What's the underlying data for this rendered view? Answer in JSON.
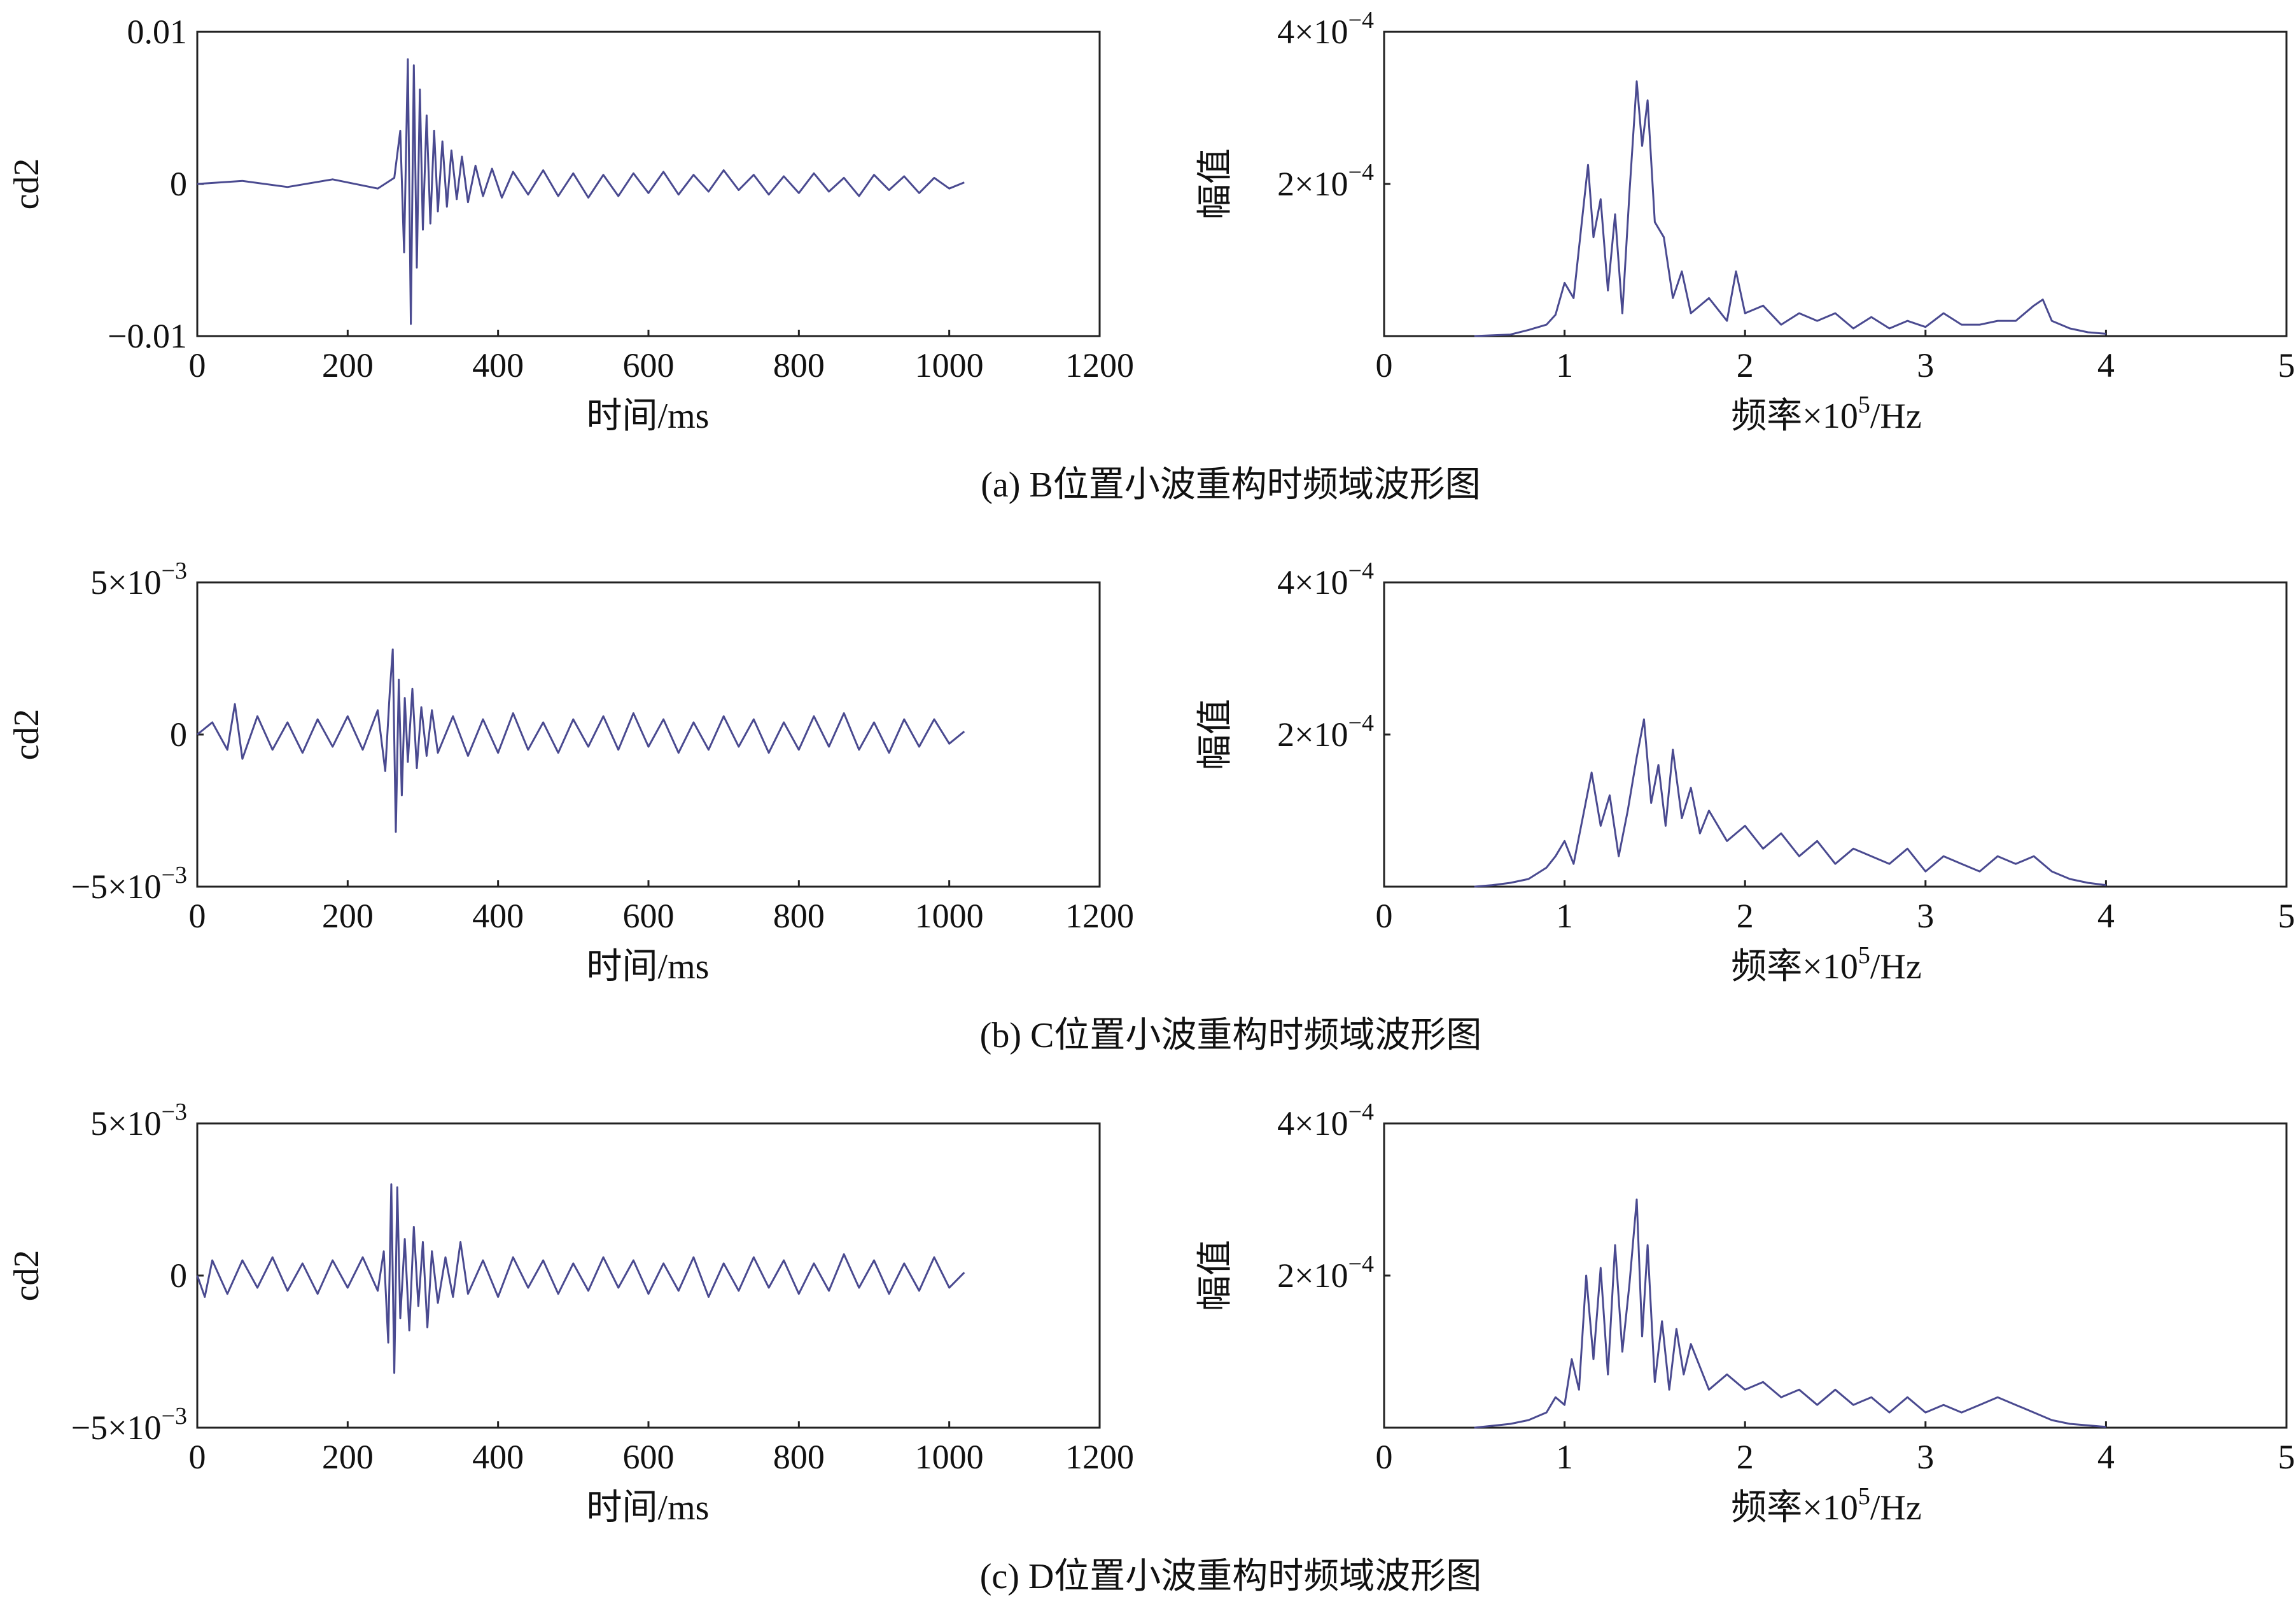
{
  "colors": {
    "trace": "#4a4a90",
    "axis": "#222222",
    "background": "#ffffff"
  },
  "chart_data": [
    {
      "panel": "a",
      "side": "time",
      "type": "line",
      "title": "",
      "xlabel": "时间/ms",
      "ylabel": "cd2",
      "xlim": [
        0,
        1200
      ],
      "ylim": [
        -0.01,
        0.01
      ],
      "xticks": [
        0,
        200,
        400,
        600,
        800,
        1000,
        1200
      ],
      "xtick_labels": [
        "0",
        "200",
        "400",
        "600",
        "800",
        "1000",
        "1200"
      ],
      "yticks": [
        -0.01,
        0,
        0.01
      ],
      "ytick_labels": [
        "−0.01",
        "0",
        "0.01"
      ],
      "series": [
        {
          "name": "cd2",
          "x": [
            0,
            60,
            120,
            180,
            240,
            262,
            270,
            275,
            280,
            284,
            288,
            292,
            296,
            300,
            305,
            310,
            315,
            320,
            326,
            332,
            338,
            345,
            352,
            360,
            370,
            380,
            392,
            405,
            420,
            440,
            460,
            480,
            500,
            520,
            540,
            560,
            580,
            600,
            620,
            640,
            660,
            680,
            700,
            720,
            740,
            760,
            780,
            800,
            820,
            840,
            860,
            880,
            900,
            920,
            940,
            960,
            980,
            1000,
            1020
          ],
          "y": [
            0,
            0.0002,
            -0.0002,
            0.0003,
            -0.0003,
            0.0004,
            0.0035,
            -0.0045,
            0.0082,
            -0.0092,
            0.0078,
            -0.0055,
            0.0062,
            -0.003,
            0.0045,
            -0.0026,
            0.0035,
            -0.0018,
            0.0028,
            -0.0015,
            0.0022,
            -0.001,
            0.0018,
            -0.0012,
            0.0012,
            -0.0008,
            0.001,
            -0.0009,
            0.0008,
            -0.0007,
            0.0009,
            -0.0008,
            0.0007,
            -0.0009,
            0.0006,
            -0.0008,
            0.0007,
            -0.0006,
            0.0008,
            -0.0007,
            0.0006,
            -0.0005,
            0.0009,
            -0.0004,
            0.0006,
            -0.0007,
            0.0005,
            -0.0006,
            0.0007,
            -0.0005,
            0.0004,
            -0.0008,
            0.0006,
            -0.0004,
            0.0005,
            -0.0006,
            0.0004,
            -0.0003,
            0.0001
          ]
        }
      ]
    },
    {
      "panel": "a",
      "side": "freq",
      "type": "line",
      "title": "",
      "xlabel": "频率×10",
      "xlabel_sup": "5",
      "xlabel_suffix": "/Hz",
      "ylabel": "幅值",
      "xlim": [
        0,
        5
      ],
      "ylim": [
        0,
        0.0004
      ],
      "xticks": [
        0,
        1,
        2,
        3,
        4,
        5
      ],
      "xtick_labels": [
        "0",
        "1",
        "2",
        "3",
        "4",
        "5"
      ],
      "yticks": [
        0.0002,
        0.0004
      ],
      "ytick_labels": [
        {
          "base": "2×10",
          "exp": "−4"
        },
        {
          "base": "4×10",
          "exp": "−4"
        }
      ],
      "series": [
        {
          "name": "幅值",
          "x": [
            0.5,
            0.7,
            0.8,
            0.9,
            0.95,
            1.0,
            1.05,
            1.1,
            1.13,
            1.16,
            1.2,
            1.24,
            1.28,
            1.32,
            1.36,
            1.4,
            1.43,
            1.46,
            1.5,
            1.55,
            1.6,
            1.65,
            1.7,
            1.8,
            1.9,
            1.95,
            2.0,
            2.1,
            2.2,
            2.3,
            2.4,
            2.5,
            2.6,
            2.7,
            2.8,
            2.9,
            3.0,
            3.1,
            3.2,
            3.3,
            3.4,
            3.5,
            3.6,
            3.65,
            3.7,
            3.8,
            3.9,
            4.0
          ],
          "y": [
            0,
            2e-06,
            8e-06,
            1.5e-05,
            2.8e-05,
            7e-05,
            5e-05,
            0.00016,
            0.000225,
            0.00013,
            0.00018,
            6e-05,
            0.00016,
            3e-05,
            0.00019,
            0.000335,
            0.00025,
            0.00031,
            0.00015,
            0.00013,
            5e-05,
            8.5e-05,
            3e-05,
            5e-05,
            2e-05,
            8.5e-05,
            3e-05,
            4e-05,
            1.5e-05,
            3e-05,
            2e-05,
            3e-05,
            1e-05,
            2.5e-05,
            1e-05,
            2e-05,
            1.2e-05,
            3e-05,
            1.5e-05,
            1.5e-05,
            2e-05,
            2e-05,
            4e-05,
            4.8e-05,
            2e-05,
            1e-05,
            5e-06,
            3e-06
          ]
        }
      ]
    },
    {
      "panel": "b",
      "side": "time",
      "type": "line",
      "title": "",
      "xlabel": "时间/ms",
      "ylabel": "cd2",
      "xlim": [
        0,
        1200
      ],
      "ylim": [
        -0.005,
        0.005
      ],
      "xticks": [
        0,
        200,
        400,
        600,
        800,
        1000,
        1200
      ],
      "xtick_labels": [
        "0",
        "200",
        "400",
        "600",
        "800",
        "1000",
        "1200"
      ],
      "yticks": [
        -0.005,
        0,
        0.005
      ],
      "ytick_labels": [
        {
          "base": "−5×10",
          "exp": "−3"
        },
        {
          "base": "0",
          "exp": ""
        },
        {
          "base": "5×10",
          "exp": "−3"
        }
      ],
      "series": [
        {
          "name": "cd2",
          "x": [
            0,
            20,
            40,
            50,
            60,
            80,
            100,
            120,
            140,
            160,
            180,
            200,
            220,
            240,
            250,
            256,
            260,
            264,
            268,
            272,
            276,
            280,
            286,
            292,
            298,
            305,
            312,
            320,
            340,
            360,
            380,
            400,
            420,
            440,
            460,
            480,
            500,
            520,
            540,
            560,
            580,
            600,
            620,
            640,
            660,
            680,
            700,
            720,
            740,
            760,
            780,
            800,
            820,
            840,
            860,
            880,
            900,
            920,
            940,
            960,
            980,
            1000,
            1020
          ],
          "y": [
            0,
            0.0004,
            -0.0005,
            0.001,
            -0.0008,
            0.0006,
            -0.0005,
            0.0004,
            -0.0006,
            0.0005,
            -0.0004,
            0.0006,
            -0.0005,
            0.0008,
            -0.0012,
            0.0014,
            0.0028,
            -0.0032,
            0.0018,
            -0.002,
            0.0012,
            -0.0009,
            0.0015,
            -0.0011,
            0.0009,
            -0.0007,
            0.0008,
            -0.0006,
            0.0006,
            -0.0007,
            0.0005,
            -0.0006,
            0.0007,
            -0.0005,
            0.0004,
            -0.0006,
            0.0005,
            -0.0004,
            0.0006,
            -0.0005,
            0.0007,
            -0.0004,
            0.0005,
            -0.0006,
            0.0004,
            -0.0005,
            0.0006,
            -0.0004,
            0.0005,
            -0.0006,
            0.0004,
            -0.0005,
            0.0006,
            -0.0004,
            0.0007,
            -0.0005,
            0.0004,
            -0.0006,
            0.0005,
            -0.0004,
            0.0005,
            -0.0003,
            0.0001
          ]
        }
      ]
    },
    {
      "panel": "b",
      "side": "freq",
      "type": "line",
      "title": "",
      "xlabel": "频率×10",
      "xlabel_sup": "5",
      "xlabel_suffix": "/Hz",
      "ylabel": "幅值",
      "xlim": [
        0,
        5
      ],
      "ylim": [
        0,
        0.0004
      ],
      "xticks": [
        0,
        1,
        2,
        3,
        4,
        5
      ],
      "xtick_labels": [
        "0",
        "1",
        "2",
        "3",
        "4",
        "5"
      ],
      "yticks": [
        0.0002,
        0.0004
      ],
      "ytick_labels": [
        {
          "base": "2×10",
          "exp": "−4"
        },
        {
          "base": "4×10",
          "exp": "−4"
        }
      ],
      "series": [
        {
          "name": "幅值",
          "x": [
            0.5,
            0.6,
            0.7,
            0.8,
            0.9,
            0.95,
            1.0,
            1.05,
            1.1,
            1.15,
            1.2,
            1.25,
            1.3,
            1.35,
            1.4,
            1.44,
            1.48,
            1.52,
            1.56,
            1.6,
            1.65,
            1.7,
            1.75,
            1.8,
            1.9,
            2.0,
            2.1,
            2.2,
            2.3,
            2.4,
            2.5,
            2.6,
            2.7,
            2.8,
            2.9,
            3.0,
            3.1,
            3.2,
            3.3,
            3.4,
            3.5,
            3.6,
            3.7,
            3.8,
            3.9,
            4.0
          ],
          "y": [
            0,
            2e-06,
            5e-06,
            1e-05,
            2.5e-05,
            4e-05,
            6e-05,
            3e-05,
            9e-05,
            0.00015,
            8e-05,
            0.00012,
            4e-05,
            0.0001,
            0.00017,
            0.00022,
            0.00011,
            0.00016,
            8e-05,
            0.00018,
            9e-05,
            0.00013,
            7e-05,
            0.0001,
            6e-05,
            8e-05,
            5e-05,
            7e-05,
            4e-05,
            6e-05,
            3e-05,
            5e-05,
            4e-05,
            3e-05,
            5e-05,
            2e-05,
            4e-05,
            3e-05,
            2e-05,
            4e-05,
            3e-05,
            4e-05,
            2e-05,
            1e-05,
            5e-06,
            2e-06
          ]
        }
      ]
    },
    {
      "panel": "c",
      "side": "time",
      "type": "line",
      "title": "",
      "xlabel": "时间/ms",
      "ylabel": "cd2",
      "xlim": [
        0,
        1200
      ],
      "ylim": [
        -0.005,
        0.005
      ],
      "xticks": [
        0,
        200,
        400,
        600,
        800,
        1000,
        1200
      ],
      "xtick_labels": [
        "0",
        "200",
        "400",
        "600",
        "800",
        "1000",
        "1200"
      ],
      "yticks": [
        -0.005,
        0,
        0.005
      ],
      "ytick_labels": [
        {
          "base": "−5×10",
          "exp": "−3"
        },
        {
          "base": "0",
          "exp": ""
        },
        {
          "base": "5×10",
          "exp": "−3"
        }
      ],
      "series": [
        {
          "name": "cd2",
          "x": [
            0,
            10,
            20,
            40,
            60,
            80,
            100,
            120,
            140,
            160,
            180,
            200,
            220,
            240,
            248,
            254,
            258,
            262,
            266,
            270,
            276,
            282,
            288,
            294,
            300,
            306,
            312,
            320,
            330,
            340,
            350,
            360,
            380,
            400,
            420,
            440,
            460,
            480,
            500,
            520,
            540,
            560,
            580,
            600,
            620,
            640,
            660,
            680,
            700,
            720,
            740,
            760,
            780,
            800,
            820,
            840,
            860,
            880,
            900,
            920,
            940,
            960,
            980,
            1000,
            1020
          ],
          "y": [
            0,
            -0.0007,
            0.0005,
            -0.0006,
            0.0005,
            -0.0004,
            0.0006,
            -0.0005,
            0.0004,
            -0.0006,
            0.0005,
            -0.0004,
            0.0006,
            -0.0005,
            0.0008,
            -0.0022,
            0.003,
            -0.0032,
            0.0029,
            -0.0014,
            0.0012,
            -0.0018,
            0.0016,
            -0.001,
            0.0011,
            -0.0017,
            0.0008,
            -0.0009,
            0.0006,
            -0.0007,
            0.0011,
            -0.0006,
            0.0005,
            -0.0007,
            0.0006,
            -0.0004,
            0.0005,
            -0.0006,
            0.0004,
            -0.0005,
            0.0006,
            -0.0004,
            0.0005,
            -0.0006,
            0.0004,
            -0.0005,
            0.0006,
            -0.0007,
            0.0004,
            -0.0005,
            0.0006,
            -0.0004,
            0.0005,
            -0.0006,
            0.0004,
            -0.0005,
            0.0007,
            -0.0004,
            0.0005,
            -0.0006,
            0.0004,
            -0.0005,
            0.0006,
            -0.0004,
            0.0001
          ]
        }
      ]
    },
    {
      "panel": "c",
      "side": "freq",
      "type": "line",
      "title": "",
      "xlabel": "频率×10",
      "xlabel_sup": "5",
      "xlabel_suffix": "/Hz",
      "ylabel": "幅值",
      "xlim": [
        0,
        5
      ],
      "ylim": [
        0,
        0.0004
      ],
      "xticks": [
        0,
        1,
        2,
        3,
        4,
        5
      ],
      "xtick_labels": [
        "0",
        "1",
        "2",
        "3",
        "4",
        "5"
      ],
      "yticks": [
        0.0002,
        0.0004
      ],
      "ytick_labels": [
        {
          "base": "2×10",
          "exp": "−4"
        },
        {
          "base": "4×10",
          "exp": "−4"
        }
      ],
      "series": [
        {
          "name": "幅值",
          "x": [
            0.5,
            0.7,
            0.8,
            0.9,
            0.95,
            1.0,
            1.04,
            1.08,
            1.12,
            1.16,
            1.2,
            1.24,
            1.28,
            1.32,
            1.36,
            1.4,
            1.43,
            1.46,
            1.5,
            1.54,
            1.58,
            1.62,
            1.66,
            1.7,
            1.8,
            1.9,
            2.0,
            2.1,
            2.2,
            2.3,
            2.4,
            2.5,
            2.6,
            2.7,
            2.8,
            2.9,
            3.0,
            3.1,
            3.2,
            3.3,
            3.4,
            3.5,
            3.6,
            3.7,
            3.8,
            3.9,
            4.0
          ],
          "y": [
            0,
            5e-06,
            1e-05,
            2e-05,
            4e-05,
            3e-05,
            9e-05,
            5e-05,
            0.0002,
            9e-05,
            0.00021,
            7e-05,
            0.00024,
            0.0001,
            0.00019,
            0.0003,
            0.00012,
            0.00024,
            6e-05,
            0.00014,
            5e-05,
            0.00013,
            7e-05,
            0.00011,
            5e-05,
            7e-05,
            5e-05,
            6e-05,
            4e-05,
            5e-05,
            3e-05,
            5e-05,
            3e-05,
            4e-05,
            2e-05,
            4e-05,
            2e-05,
            3e-05,
            2e-05,
            3e-05,
            4e-05,
            3e-05,
            2e-05,
            1e-05,
            5e-06,
            3e-06,
            1e-06
          ]
        }
      ]
    }
  ],
  "captions": [
    "(a) B位置小波重构时频域波形图",
    "(b) C位置小波重构时频域波形图",
    "(c) D位置小波重构时频域波形图"
  ]
}
